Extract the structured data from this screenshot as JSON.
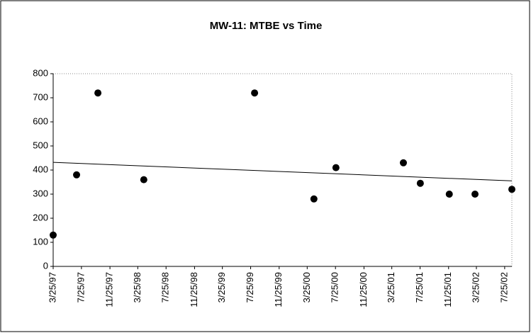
{
  "chart_data": {
    "type": "scatter",
    "title": "MW-11: MTBE vs Time",
    "x": [
      "1997-03-25",
      "1997-07-04",
      "1997-10-04",
      "1998-04-20",
      "1999-08-11",
      "2000-04-23",
      "2000-07-27",
      "2001-05-14",
      "2001-07-26",
      "2001-11-28",
      "2002-03-19",
      "2002-08-25"
    ],
    "values": [
      130,
      380,
      720,
      360,
      720,
      280,
      410,
      430,
      345,
      300,
      300,
      320
    ],
    "color": "#000000",
    "trendline": {
      "x": [
        "1997-03-25",
        "2002-08-25"
      ],
      "values": [
        432,
        355
      ]
    },
    "xlim": [
      "1997-03-25",
      "2002-08-25"
    ],
    "xticks": [
      {
        "value": "1997-03-25",
        "label": "3/25/97"
      },
      {
        "value": "1997-07-25",
        "label": "7/25/97"
      },
      {
        "value": "1997-11-25",
        "label": "11/25/97"
      },
      {
        "value": "1998-03-25",
        "label": "3/25/98"
      },
      {
        "value": "1998-07-25",
        "label": "7/25/98"
      },
      {
        "value": "1998-11-25",
        "label": "11/25/98"
      },
      {
        "value": "1999-03-25",
        "label": "3/25/99"
      },
      {
        "value": "1999-07-25",
        "label": "7/25/99"
      },
      {
        "value": "1999-11-25",
        "label": "11/25/99"
      },
      {
        "value": "2000-03-25",
        "label": "3/25/00"
      },
      {
        "value": "2000-07-25",
        "label": "7/25/00"
      },
      {
        "value": "2000-11-25",
        "label": "11/25/00"
      },
      {
        "value": "2001-03-25",
        "label": "3/25/01"
      },
      {
        "value": "2001-07-25",
        "label": "7/25/01"
      },
      {
        "value": "2001-11-25",
        "label": "11/25/01"
      },
      {
        "value": "2002-03-25",
        "label": "3/25/02"
      },
      {
        "value": "2002-07-25",
        "label": "7/25/02"
      }
    ],
    "ylim": [
      0,
      800
    ],
    "yticks": [
      0,
      100,
      200,
      300,
      400,
      500,
      600,
      700,
      800
    ],
    "grid": false
  }
}
